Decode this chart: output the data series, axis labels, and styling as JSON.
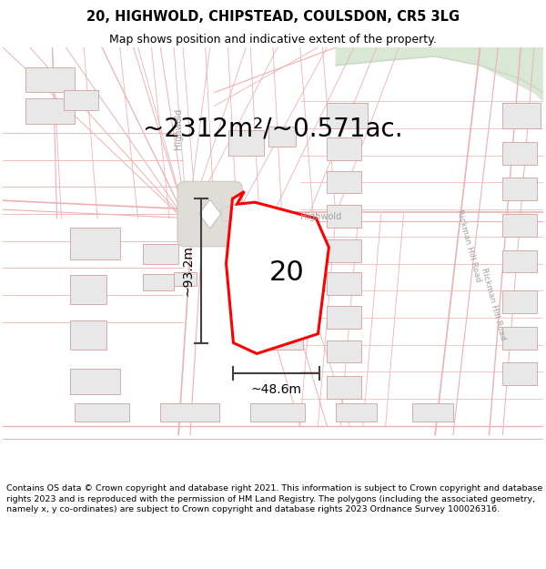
{
  "title": "20, HIGHWOLD, CHIPSTEAD, COULSDON, CR5 3LG",
  "subtitle": "Map shows position and indicative extent of the property.",
  "area_text": "~2312m²/~0.571ac.",
  "label_20": "20",
  "dim_height": "~93.2m",
  "dim_width": "~48.6m",
  "street_label_h": "Highwold",
  "street_label_v": "Highwold",
  "road_label1": "Rickman Hill Road",
  "road_label2": "Rickman Hill Road",
  "footer": "Contains OS data © Crown copyright and database right 2021. This information is subject to Crown copyright and database rights 2023 and is reproduced with the permission of HM Land Registry. The polygons (including the associated geometry, namely x, y co-ordinates) are subject to Crown copyright and database rights 2023 Ordnance Survey 100026316.",
  "map_bg": "#ffffff",
  "road_line_color": "#f0b0b0",
  "building_fill": "#e8e8e8",
  "building_edge": "#d0a0a0",
  "green_fill": "#d8e8d5",
  "junction_fill": "#e0dcd8",
  "plot_color": "#ff0000",
  "dim_color": "#404040",
  "text_gray": "#a0a0a0",
  "fig_width": 6.0,
  "fig_height": 6.25,
  "title_fontsize": 10.5,
  "subtitle_fontsize": 9,
  "area_fontsize": 20,
  "label_fontsize": 22,
  "dim_fontsize": 10,
  "footer_fontsize": 6.8
}
